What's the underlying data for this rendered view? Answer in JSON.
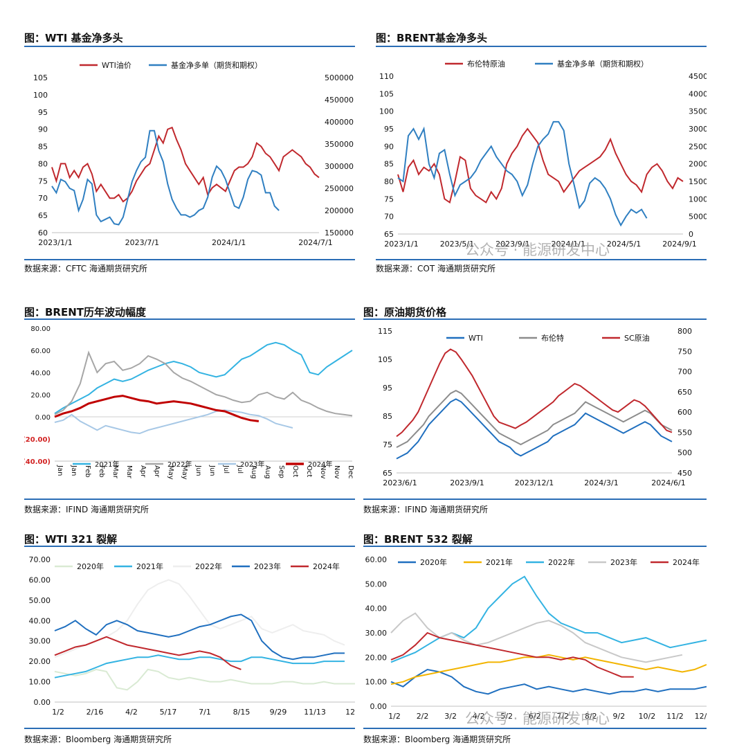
{
  "watermark": "公众号 · 能源研发中心",
  "charts": [
    {
      "type": "line",
      "title": "图：WTI 基金净多头",
      "source": "数据来源：CFTC  海通期货研究所",
      "legend": [
        {
          "name": "WTI油价",
          "color": "#c0282d"
        },
        {
          "name": "基金净多单（期货和期权）",
          "color": "#2f7fc1"
        }
      ],
      "x_range": [
        "2023/1/1",
        "2024/9/15"
      ],
      "x_ticks": [
        "2023/1/1",
        "2023/7/1",
        "2024/1/1",
        "2024/7/1"
      ],
      "y_left": {
        "min": 60,
        "max": 105,
        "ticks": [
          "105",
          "100",
          "95",
          "90",
          "85",
          "80",
          "75",
          "70",
          "65",
          "60"
        ]
      },
      "y_right": {
        "min": 150000,
        "max": 500000,
        "ticks": [
          "500000",
          "450000",
          "400000",
          "350000",
          "300000",
          "250000",
          "200000",
          "150000"
        ]
      },
      "series": [
        {
          "name": "WTI油价",
          "axis": "left",
          "color": "#c0282d",
          "values": [
            79,
            75,
            80,
            80,
            76,
            78,
            76,
            79,
            80,
            77,
            72,
            74,
            72,
            70,
            70,
            71,
            69,
            70,
            72,
            75,
            77,
            79,
            80,
            84,
            88,
            86,
            90,
            90.5,
            87,
            84,
            80,
            78,
            76,
            74,
            76,
            71,
            73,
            74,
            73,
            72,
            75,
            78,
            79,
            79,
            80,
            82,
            86,
            85,
            83,
            82,
            80,
            78,
            82,
            83,
            84,
            83,
            82,
            80,
            79,
            77,
            76
          ]
        },
        {
          "name": "基金净多单（期货和期权）",
          "axis": "right",
          "color": "#2f7fc1",
          "values": [
            255000,
            240000,
            270000,
            265000,
            250000,
            245000,
            200000,
            225000,
            270000,
            260000,
            190000,
            175000,
            180000,
            185000,
            170000,
            168000,
            185000,
            225000,
            265000,
            290000,
            310000,
            320000,
            380000,
            380000,
            335000,
            310000,
            260000,
            225000,
            205000,
            190000,
            190000,
            185000,
            190000,
            200000,
            205000,
            230000,
            275000,
            300000,
            290000,
            270000,
            240000,
            210000,
            205000,
            230000,
            270000,
            290000,
            287000,
            280000,
            240000,
            240000,
            210000,
            200000
          ]
        }
      ]
    },
    {
      "type": "line",
      "title": "图：BRENT基金净多头",
      "source": "数据来源：COT  海通期货研究所",
      "legend": [
        {
          "name": "布伦特原油",
          "color": "#c0282d"
        },
        {
          "name": "基金净多单（期货和期权）",
          "color": "#2f7fc1"
        }
      ],
      "x_range": [
        "2023/1/1",
        "2024/9/1"
      ],
      "x_ticks": [
        "2023/1/1",
        "2023/5/1",
        "2023/9/1",
        "2024/1/1",
        "2024/5/1",
        "2024/9/1"
      ],
      "y_left": {
        "min": 65,
        "max": 110,
        "ticks": [
          "110",
          "105",
          "100",
          "95",
          "90",
          "85",
          "80",
          "75",
          "70",
          "65"
        ]
      },
      "y_right": {
        "min": 0,
        "max": 450000,
        "ticks": [
          "450000",
          "400000",
          "350000",
          "300000",
          "250000",
          "200000",
          "150000",
          "100000",
          "50000",
          "0"
        ]
      },
      "series": [
        {
          "name": "布伦特原油",
          "axis": "left",
          "color": "#c0282d",
          "values": [
            82,
            77,
            84,
            86,
            82,
            84,
            83,
            85,
            82,
            75,
            74,
            80,
            87,
            86,
            78,
            76,
            75,
            74,
            77,
            75,
            78,
            85,
            88,
            90,
            93,
            95,
            93,
            91,
            86,
            82,
            81,
            80,
            77,
            79,
            81,
            83,
            84,
            85,
            86,
            87,
            89,
            92,
            88,
            85,
            82,
            80,
            79,
            77,
            82,
            84,
            85,
            83,
            80,
            78,
            81,
            80
          ]
        },
        {
          "name": "基金净多单（期货和期权）",
          "axis": "right",
          "color": "#2f7fc1",
          "values": [
            160000,
            150000,
            280000,
            300000,
            270000,
            300000,
            200000,
            160000,
            230000,
            240000,
            170000,
            110000,
            140000,
            150000,
            160000,
            180000,
            210000,
            230000,
            250000,
            220000,
            200000,
            180000,
            170000,
            150000,
            110000,
            140000,
            200000,
            250000,
            270000,
            285000,
            320000,
            320000,
            295000,
            200000,
            140000,
            75000,
            95000,
            145000,
            160000,
            150000,
            130000,
            100000,
            55000,
            25000,
            50000,
            70000,
            60000,
            70000,
            45000
          ]
        }
      ]
    },
    {
      "type": "line",
      "title": "图：BRENT历年波动幅度",
      "source": "数据来源：IFIND  海通期货研究所",
      "x_ticks": [
        "Jan",
        "Jan",
        "Feb",
        "Feb",
        "Mar",
        "Mar",
        "Apr",
        "Apr",
        "May",
        "May",
        "Jun",
        "Jun",
        "Jul",
        "Jul",
        "Aug",
        "Aug",
        "Sep",
        "Oct",
        "Oct",
        "Nov",
        "Nov",
        "Dec"
      ],
      "y_left": {
        "min": -40,
        "max": 80,
        "ticks": [
          "80.00",
          "60.00",
          "40.00",
          "20.00",
          "0.00",
          "(20.00)",
          "(40.00)"
        ]
      },
      "negative_tick_color": "#d22222",
      "series": [
        {
          "name": "2021年",
          "color": "#33b3e2",
          "values": [
            3,
            8,
            12,
            16,
            20,
            26,
            30,
            34,
            32,
            34,
            38,
            42,
            45,
            48,
            50,
            48,
            45,
            40,
            38,
            36,
            38,
            45,
            52,
            55,
            60,
            65,
            67,
            65,
            60,
            56,
            40,
            38,
            45,
            50,
            55,
            60
          ]
        },
        {
          "name": "2022年",
          "color": "#a6a6a6",
          "values": [
            2,
            6,
            14,
            30,
            58,
            40,
            48,
            50,
            42,
            44,
            48,
            55,
            52,
            48,
            40,
            35,
            32,
            28,
            24,
            20,
            18,
            15,
            13,
            14,
            20,
            22,
            18,
            16,
            22,
            15,
            12,
            8,
            5,
            3,
            2,
            1
          ]
        },
        {
          "name": "2023年",
          "color": "#a7c8e6",
          "values": [
            -5,
            -3,
            2,
            -4,
            -8,
            -12,
            -8,
            -10,
            -12,
            -14,
            -15,
            -12,
            -10,
            -8,
            -6,
            -4,
            -2,
            0,
            2,
            5,
            6,
            5,
            4,
            2,
            1,
            -2,
            -6,
            -8,
            -10
          ]
        },
        {
          "name": "2024年",
          "color": "#c00000",
          "values": [
            0,
            3,
            5,
            8,
            12,
            14,
            16,
            18,
            19,
            17,
            15,
            14,
            12,
            13,
            14,
            13,
            12,
            10,
            8,
            6,
            5,
            2,
            -1,
            -3,
            -4
          ]
        }
      ]
    },
    {
      "type": "line",
      "title": "图：原油期货价格",
      "source": "数据来源：IFIND  海通期货研究所",
      "x_ticks": [
        "2023/6/1",
        "2023/9/1",
        "2023/12/1",
        "2024/3/1",
        "2024/6/1"
      ],
      "y_left": {
        "min": 65,
        "max": 115,
        "ticks": [
          "115",
          "105",
          "95",
          "85",
          "75",
          "65"
        ]
      },
      "y_right": {
        "min": 450,
        "max": 800,
        "ticks": [
          "800",
          "750",
          "700",
          "650",
          "600",
          "550",
          "500",
          "450"
        ]
      },
      "series": [
        {
          "name": "WTI",
          "axis": "left",
          "color": "#1f6fbf",
          "values": [
            70,
            71,
            72,
            74,
            76,
            79,
            82,
            84,
            86,
            88,
            90,
            91,
            90,
            88,
            86,
            84,
            82,
            80,
            78,
            76,
            75,
            74,
            72,
            71,
            72,
            73,
            74,
            75,
            76,
            78,
            79,
            80,
            81,
            82,
            84,
            86,
            85,
            84,
            83,
            82,
            81,
            80,
            79,
            80,
            81,
            82,
            83,
            82,
            80,
            78,
            77,
            76
          ]
        },
        {
          "name": "布伦特",
          "axis": "left",
          "color": "#8c8c8c",
          "values": [
            74,
            75,
            76,
            78,
            80,
            82,
            85,
            87,
            89,
            91,
            93,
            94,
            93,
            91,
            89,
            87,
            85,
            83,
            81,
            79,
            78,
            77,
            76,
            75,
            76,
            77,
            78,
            79,
            80,
            82,
            83,
            84,
            85,
            86,
            88,
            90,
            89,
            88,
            87,
            86,
            85,
            84,
            83,
            84,
            85,
            86,
            87,
            86,
            84,
            82,
            81,
            80
          ]
        },
        {
          "name": "SC原油",
          "axis": "right",
          "color": "#c0282d",
          "values": [
            540,
            550,
            565,
            580,
            600,
            630,
            660,
            690,
            720,
            745,
            755,
            748,
            730,
            710,
            690,
            665,
            640,
            615,
            590,
            575,
            570,
            565,
            560,
            568,
            575,
            585,
            595,
            605,
            615,
            625,
            640,
            650,
            660,
            670,
            665,
            655,
            645,
            635,
            625,
            615,
            605,
            600,
            610,
            620,
            630,
            625,
            615,
            600,
            585,
            570,
            555,
            550
          ]
        }
      ]
    },
    {
      "type": "line",
      "title": "图：WTI 321 裂解",
      "source": "数据来源：Bloomberg  海通期货研究所",
      "x_ticks": [
        "1/2",
        "2/16",
        "4/2",
        "5/17",
        "7/1",
        "8/15",
        "9/29",
        "11/13",
        "12/"
      ],
      "y_left": {
        "min": 0,
        "max": 70,
        "ticks": [
          "70.00",
          "60.00",
          "50.00",
          "40.00",
          "30.00",
          "20.00",
          "10.00",
          "0.00"
        ]
      },
      "series": [
        {
          "name": "2020年",
          "color": "#d9ead3",
          "values": [
            15,
            14,
            13,
            14,
            16,
            15,
            7,
            6,
            10,
            16,
            15,
            12,
            11,
            12,
            11,
            10,
            10,
            11,
            10,
            9,
            9,
            9,
            10,
            10,
            9,
            9,
            10,
            9,
            9,
            9
          ]
        },
        {
          "name": "2021年",
          "color": "#33b3e2",
          "values": [
            12,
            13,
            14,
            15,
            17,
            19,
            20,
            21,
            22,
            22,
            23,
            22,
            21,
            21,
            22,
            22,
            21,
            20,
            20,
            22,
            22,
            21,
            20,
            19,
            19,
            19,
            20,
            20,
            20
          ]
        },
        {
          "name": "2022年",
          "color": "#eeeeee",
          "values": [
            22,
            24,
            26,
            28,
            30,
            32,
            35,
            40,
            48,
            55,
            58,
            60,
            58,
            52,
            45,
            38,
            36,
            38,
            40,
            42,
            36,
            34,
            36,
            38,
            35,
            34,
            33,
            30,
            28
          ]
        },
        {
          "name": "2023年",
          "color": "#1f6fbf",
          "values": [
            35,
            37,
            40,
            36,
            33,
            38,
            40,
            38,
            35,
            34,
            33,
            32,
            33,
            35,
            37,
            38,
            40,
            42,
            43,
            40,
            30,
            25,
            22,
            21,
            22,
            22,
            23,
            24,
            24
          ]
        },
        {
          "name": "2024年",
          "color": "#c0282d",
          "values": [
            23,
            25,
            27,
            28,
            30,
            32,
            30,
            28,
            27,
            26,
            25,
            24,
            23,
            24,
            25,
            24,
            22,
            18,
            16
          ]
        }
      ]
    },
    {
      "type": "line",
      "title": "图：BRENT 532 裂解",
      "source": "数据来源：Bloomberg  海通期货研究所",
      "x_ticks": [
        "1/2",
        "2/2",
        "3/2",
        "4/2",
        "5/2",
        "6/2",
        "7/2",
        "8/2",
        "9/2",
        "10/2",
        "11/2",
        "12/2"
      ],
      "y_left": {
        "min": 0,
        "max": 60,
        "ticks": [
          "60.00",
          "50.00",
          "40.00",
          "30.00",
          "20.00",
          "10.00",
          "0.00"
        ]
      },
      "series": [
        {
          "name": "2020年",
          "color": "#1f6fbf",
          "values": [
            10,
            8,
            12,
            15,
            14,
            12,
            8,
            6,
            5,
            7,
            8,
            9,
            7,
            8,
            7,
            6,
            7,
            6,
            5,
            6,
            6,
            7,
            6,
            7,
            7,
            7,
            8
          ]
        },
        {
          "name": "2021年",
          "color": "#f2b400",
          "values": [
            9,
            10,
            12,
            13,
            14,
            15,
            16,
            17,
            18,
            18,
            19,
            20,
            20,
            21,
            20,
            19,
            20,
            19,
            18,
            17,
            16,
            15,
            16,
            15,
            14,
            15,
            17
          ]
        },
        {
          "name": "2022年",
          "color": "#33b3e2",
          "values": [
            18,
            20,
            22,
            25,
            28,
            30,
            28,
            32,
            40,
            45,
            50,
            53,
            45,
            38,
            34,
            32,
            30,
            30,
            28,
            26,
            27,
            28,
            26,
            24,
            25,
            26,
            27
          ]
        },
        {
          "name": "2023年",
          "color": "#c8c8c8",
          "values": [
            30,
            35,
            38,
            32,
            28,
            30,
            27,
            25,
            26,
            28,
            30,
            32,
            34,
            35,
            33,
            30,
            26,
            24,
            22,
            20,
            19,
            18,
            19,
            20,
            21
          ]
        },
        {
          "name": "2024年",
          "color": "#c0282d",
          "values": [
            19,
            21,
            25,
            30,
            28,
            27,
            26,
            25,
            24,
            23,
            22,
            21,
            20,
            20,
            19,
            20,
            19,
            16,
            14,
            12,
            12
          ]
        }
      ]
    }
  ]
}
